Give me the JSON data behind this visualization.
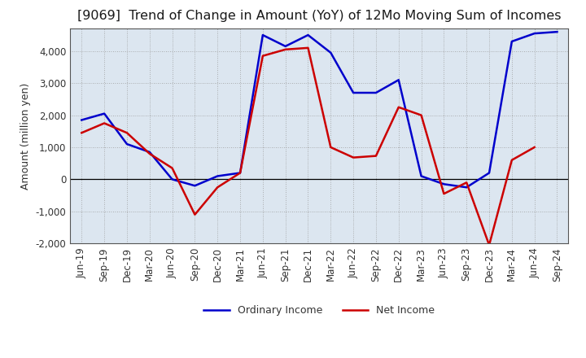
{
  "title": "[9069]  Trend of Change in Amount (YoY) of 12Mo Moving Sum of Incomes",
  "ylabel": "Amount (million yen)",
  "xlabels": [
    "Jun-19",
    "Sep-19",
    "Dec-19",
    "Mar-20",
    "Jun-20",
    "Sep-20",
    "Dec-20",
    "Mar-21",
    "Jun-21",
    "Sep-21",
    "Dec-21",
    "Mar-22",
    "Jun-22",
    "Sep-22",
    "Dec-22",
    "Mar-23",
    "Jun-23",
    "Sep-23",
    "Dec-23",
    "Mar-24",
    "Jun-24",
    "Sep-24"
  ],
  "ordinary_income": [
    1850,
    2050,
    1100,
    850,
    0,
    -200,
    100,
    200,
    4500,
    4150,
    4500,
    3950,
    2700,
    2700,
    3100,
    100,
    -150,
    -250,
    200,
    4300,
    4550,
    4600
  ],
  "net_income": [
    1450,
    1750,
    1450,
    800,
    350,
    -1100,
    -250,
    200,
    3850,
    4050,
    4100,
    1000,
    680,
    730,
    2250,
    2000,
    -450,
    -100,
    -2050,
    600,
    1000,
    null
  ],
  "ordinary_color": "#0000cc",
  "net_color": "#cc0000",
  "ylim": [
    -2000,
    4700
  ],
  "yticks": [
    -2000,
    -1000,
    0,
    1000,
    2000,
    3000,
    4000
  ],
  "plot_bg_color": "#dce6f0",
  "background_color": "#ffffff",
  "grid_color": "#999999",
  "legend_labels": [
    "Ordinary Income",
    "Net Income"
  ],
  "title_fontsize": 11.5,
  "axis_fontsize": 9,
  "tick_fontsize": 8.5
}
